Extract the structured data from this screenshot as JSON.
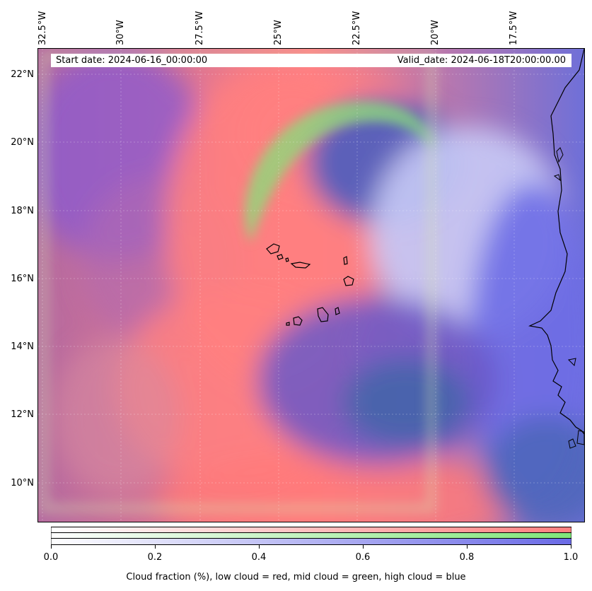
{
  "map": {
    "start_date": "Start date: 2024-06-16_00:00:00",
    "valid_date": "Valid_date: 2024-06-18T20:00:00.00",
    "lon_labels": [
      "32.5°W",
      "30°W",
      "27.5°W",
      "25°W",
      "22.5°W",
      "20°W",
      "17.5°W"
    ],
    "lat_labels": [
      "22°N",
      "20°N",
      "18°N",
      "16°N",
      "14°N",
      "12°N",
      "10°N"
    ],
    "colors": {
      "low_cloud": "#ff7f7f",
      "mid_cloud": "#80e67a",
      "high_cloud": "#6a6ae6",
      "coastline": "#000000"
    }
  },
  "colorbar": {
    "ticks": [
      "0.0",
      "0.2",
      "0.4",
      "0.6",
      "0.8",
      "1.0"
    ],
    "label": "Cloud fraction (%), low cloud = red, mid cloud = green, high cloud = blue",
    "range": [
      0,
      1
    ]
  }
}
